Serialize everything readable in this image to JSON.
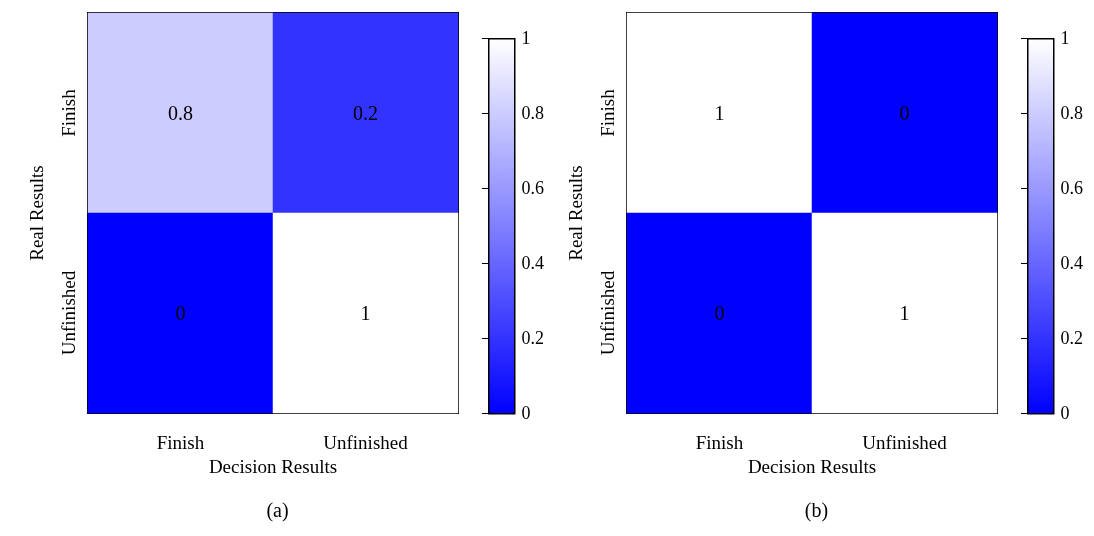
{
  "chart_data": [
    {
      "type": "heatmap",
      "categories": [
        "Finish",
        "Unfinished"
      ],
      "y_categories": [
        "Finish",
        "Unfinished"
      ],
      "cells": [
        [
          0.8,
          0.2
        ],
        [
          0,
          1
        ]
      ],
      "data_labels": true,
      "clim": [
        0,
        1
      ],
      "cticks": [
        0,
        0.2,
        0.4,
        0.6,
        0.8,
        1
      ],
      "xlabel": "Decision Results",
      "ylabel": "Real Results",
      "annotations": [
        "(a)"
      ]
    },
    {
      "type": "heatmap",
      "categories": [
        "Finish",
        "Unfinished"
      ],
      "y_categories": [
        "Finish",
        "Unfinished"
      ],
      "cells": [
        [
          1,
          0
        ],
        [
          0,
          1
        ]
      ],
      "data_labels": true,
      "clim": [
        0,
        1
      ],
      "cticks": [
        0,
        0.2,
        0.4,
        0.6,
        0.8,
        1
      ],
      "xlabel": "Decision Results",
      "ylabel": "Real Results",
      "annotations": [
        "(b)"
      ]
    }
  ]
}
